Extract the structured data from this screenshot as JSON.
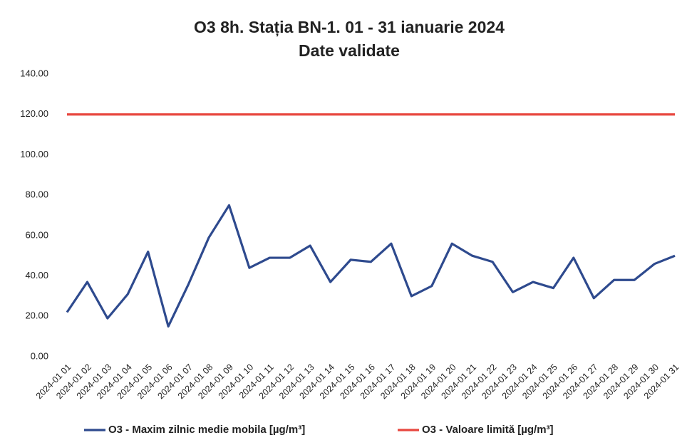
{
  "chart_data": {
    "type": "line",
    "title": "O3 8h. Stația BN-1. 01 - 31 ianuarie 2024",
    "subtitle": "Date validate",
    "categories": [
      "2024-01 01",
      "2024-01 02",
      "2024-01 03",
      "2024-01 04",
      "2024-01 05",
      "2024-01 06",
      "2024-01 07",
      "2024-01 08",
      "2024-01 09",
      "2024-01 10",
      "2024-01 11",
      "2024-01 12",
      "2024-01 13",
      "2024-01 14",
      "2024-01 15",
      "2024-01 16",
      "2024-01 17",
      "2024-01 18",
      "2024-01 19",
      "2024-01 20",
      "2024-01 21",
      "2024-01 22",
      "2024-01 23",
      "2024-01 24",
      "2024-01 25",
      "2024-01 26",
      "2024-01 27",
      "2024-01 28",
      "2024-01 29",
      "2024-01 30",
      "2024-01 31"
    ],
    "series": [
      {
        "name": "O3 - Maxim zilnic medie mobila [µg/m³]",
        "color": "#2e4a8e",
        "values": [
          22,
          37,
          19,
          31,
          52,
          15,
          36,
          59,
          75,
          44,
          49,
          49,
          55,
          37,
          48,
          47,
          56,
          30,
          35,
          56,
          50,
          47,
          32,
          37,
          34,
          49,
          29,
          38,
          38,
          46,
          50
        ]
      },
      {
        "name": "O3 - Valoare limită [µg/m³]",
        "color": "#e8473f",
        "values": [
          120,
          120,
          120,
          120,
          120,
          120,
          120,
          120,
          120,
          120,
          120,
          120,
          120,
          120,
          120,
          120,
          120,
          120,
          120,
          120,
          120,
          120,
          120,
          120,
          120,
          120,
          120,
          120,
          120,
          120,
          120
        ]
      }
    ],
    "ylim": [
      0,
      140
    ],
    "yticks": [
      {
        "value": 0,
        "label": "0.00"
      },
      {
        "value": 20,
        "label": "20.00"
      },
      {
        "value": 40,
        "label": "40.00"
      },
      {
        "value": 60,
        "label": "60.00"
      },
      {
        "value": 80,
        "label": "80.00"
      },
      {
        "value": 100,
        "label": "100.00"
      },
      {
        "value": 120,
        "label": "120.00"
      },
      {
        "value": 140,
        "label": "140.00"
      }
    ],
    "grid": false,
    "legend": "bottom"
  }
}
